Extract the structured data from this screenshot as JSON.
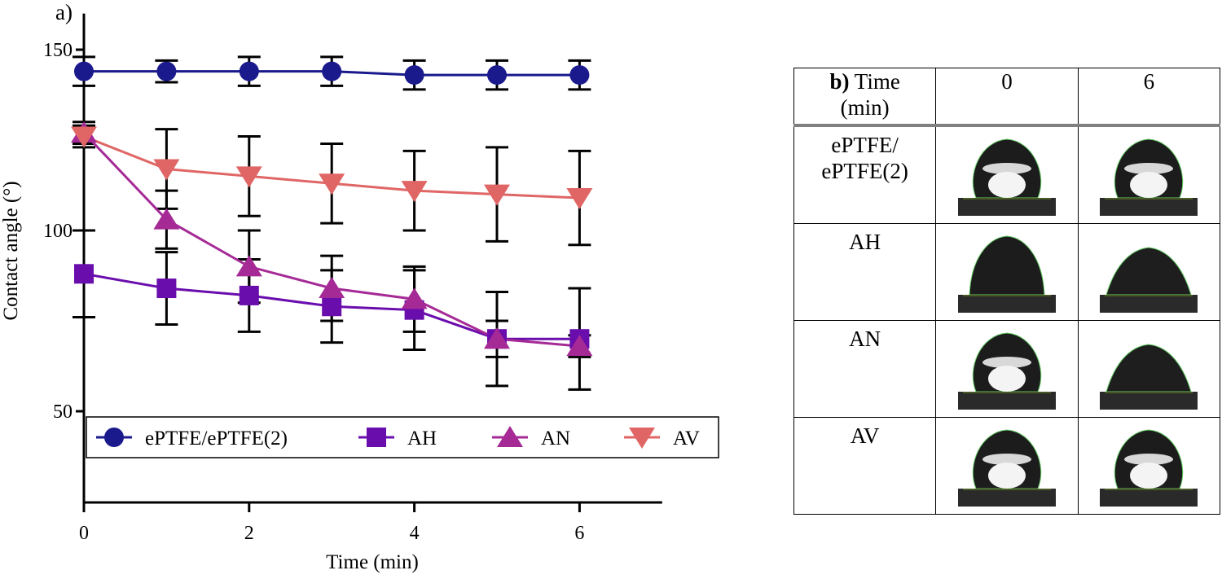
{
  "panel_a_label": "a)",
  "chart_data": {
    "type": "line",
    "xlabel": "Time (min)",
    "ylabel": "Contact angle (°)",
    "x": [
      0,
      1,
      2,
      3,
      4,
      5,
      6
    ],
    "xlim": [
      0,
      7
    ],
    "ylim": [
      25,
      160
    ],
    "xticks": [
      0,
      2,
      4,
      6
    ],
    "yticks": [
      50,
      100,
      150
    ],
    "xtick_labels": [
      "0",
      "2",
      "4",
      "6"
    ],
    "ytick_labels": [
      "50",
      "100",
      "150"
    ],
    "legend_position": "bottom",
    "series": [
      {
        "name": "ePTFE/ePTFE(2)",
        "marker": "circle",
        "color": "#1a1a8c",
        "values": [
          144,
          144,
          144,
          144,
          143,
          143,
          143
        ],
        "error": [
          4,
          3,
          4,
          4,
          4,
          4,
          4
        ]
      },
      {
        "name": "AH",
        "marker": "square",
        "color": "#6a0dad",
        "values": [
          88,
          84,
          82,
          79,
          78,
          70,
          70
        ],
        "error": [
          12,
          10,
          10,
          10,
          11,
          13,
          14
        ]
      },
      {
        "name": "AN",
        "marker": "triangle-up",
        "color": "#a52a96",
        "values": [
          127,
          103,
          90,
          84,
          81,
          70,
          68
        ],
        "error": [
          3,
          8,
          10,
          9,
          9,
          5,
          3
        ]
      },
      {
        "name": "AV",
        "marker": "triangle-down",
        "color": "#e06666",
        "values": [
          126,
          117,
          115,
          113,
          111,
          110,
          109
        ],
        "error": [
          3,
          11,
          11,
          11,
          11,
          13,
          13
        ]
      }
    ]
  },
  "table": {
    "header": {
      "label_bold": "b)",
      "label_rest": "Time",
      "label_line2": "(min)",
      "col1": "0",
      "col2": "6"
    },
    "rows": [
      {
        "label_line1": "ePTFE/",
        "label_line2": "ePTFE(2)",
        "shape0": "sphere",
        "shape6": "sphere"
      },
      {
        "label_line1": "AH",
        "label_line2": "",
        "shape0": "dome",
        "shape6": "flat"
      },
      {
        "label_line1": "AN",
        "label_line2": "",
        "shape0": "sphere",
        "shape6": "flat"
      },
      {
        "label_line1": "AV",
        "label_line2": "",
        "shape0": "sphere",
        "shape6": "sphere"
      }
    ]
  }
}
